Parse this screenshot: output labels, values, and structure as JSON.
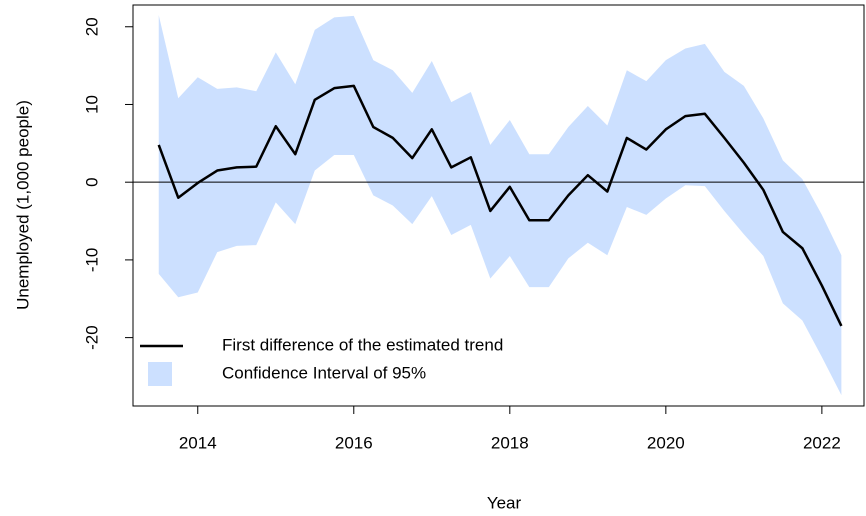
{
  "chart_data": {
    "type": "line",
    "x_label": "Year",
    "y_label": "Unemployed (1,000 people)",
    "x": [
      2013.5,
      2013.75,
      2014,
      2014.25,
      2014.5,
      2014.75,
      2015,
      2015.25,
      2015.5,
      2015.75,
      2016,
      2016.25,
      2016.5,
      2016.75,
      2017,
      2017.25,
      2017.5,
      2017.75,
      2018,
      2018.25,
      2018.5,
      2018.75,
      2019,
      2019.25,
      2019.5,
      2019.75,
      2020,
      2020.25,
      2020.5,
      2020.75,
      2021,
      2021.25,
      2021.5,
      2021.75,
      2022,
      2022.25
    ],
    "series": [
      {
        "name": "First difference of the estimated trend",
        "color": "#000000",
        "values": [
          4.8,
          -2.0,
          -0.1,
          1.5,
          1.9,
          2.0,
          7.2,
          3.6,
          10.6,
          12.1,
          12.4,
          7.1,
          5.7,
          3.1,
          6.8,
          1.9,
          3.2,
          -3.7,
          -0.6,
          -4.9,
          -4.9,
          -1.7,
          0.9,
          -1.2,
          5.7,
          4.2,
          6.8,
          8.5,
          8.8,
          5.7,
          2.5,
          -1.0,
          -6.4,
          -8.5,
          -13.3,
          -18.5
        ]
      }
    ],
    "band": {
      "name": "Confidence Interval of 95%",
      "color": "#cce0ff",
      "upper": [
        21.5,
        10.8,
        13.5,
        12.0,
        12.2,
        11.7,
        16.7,
        12.6,
        19.6,
        21.2,
        21.4,
        15.7,
        14.4,
        11.5,
        15.6,
        10.3,
        11.6,
        4.8,
        8.0,
        3.6,
        3.6,
        7.1,
        9.8,
        7.3,
        14.4,
        13.0,
        15.7,
        17.2,
        17.8,
        14.2,
        12.4,
        8.2,
        2.8,
        0.4,
        -4.2,
        -9.4
      ],
      "lower": [
        -11.8,
        -14.8,
        -14.2,
        -9.0,
        -8.2,
        -8.1,
        -2.6,
        -5.4,
        1.5,
        3.5,
        3.5,
        -1.7,
        -3.0,
        -5.4,
        -1.8,
        -6.8,
        -5.5,
        -12.4,
        -9.5,
        -13.5,
        -13.5,
        -9.8,
        -7.8,
        -9.4,
        -3.2,
        -4.2,
        -2.1,
        -0.4,
        -0.5,
        -3.7,
        -6.7,
        -9.5,
        -15.6,
        -17.8,
        -22.5,
        -27.4
      ]
    },
    "hline": 0,
    "xlim": [
      2013.17,
      2022.54
    ],
    "ylim": [
      -28.8,
      22.8
    ],
    "xticks": [
      2014,
      2016,
      2018,
      2020,
      2022
    ],
    "yticks": [
      -20,
      -10,
      0,
      10,
      20
    ],
    "legend": "bottom-left"
  }
}
